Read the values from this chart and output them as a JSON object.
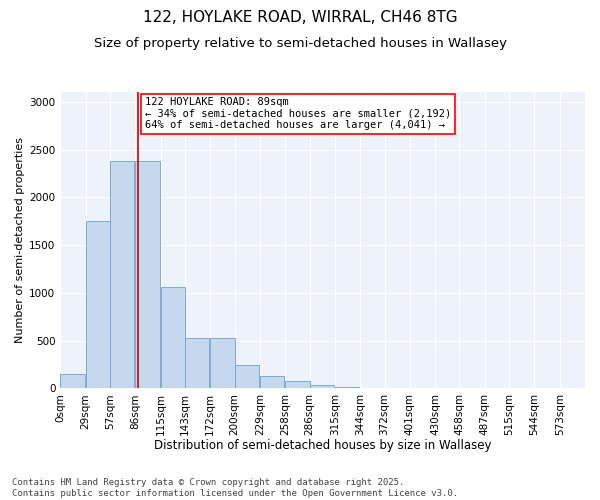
{
  "title": "122, HOYLAKE ROAD, WIRRAL, CH46 8TG",
  "subtitle": "Size of property relative to semi-detached houses in Wallasey",
  "xlabel": "Distribution of semi-detached houses by size in Wallasey",
  "ylabel": "Number of semi-detached properties",
  "bar_color": "#c5d8ee",
  "bar_edge_color": "#6fa0cc",
  "background_color": "#eef2fa",
  "annotation_text": "122 HOYLAKE ROAD: 89sqm\n← 34% of semi-detached houses are smaller (2,192)\n64% of semi-detached houses are larger (4,041) →",
  "vline_x": 89,
  "vline_color": "#cc0000",
  "categories": [
    "0sqm",
    "29sqm",
    "57sqm",
    "86sqm",
    "115sqm",
    "143sqm",
    "172sqm",
    "200sqm",
    "229sqm",
    "258sqm",
    "286sqm",
    "315sqm",
    "344sqm",
    "372sqm",
    "401sqm",
    "430sqm",
    "458sqm",
    "487sqm",
    "515sqm",
    "544sqm",
    "573sqm"
  ],
  "bin_starts": [
    0,
    29,
    57,
    86,
    115,
    143,
    172,
    200,
    229,
    258,
    286,
    315,
    344,
    372,
    401,
    430,
    458,
    487,
    515,
    544,
    573
  ],
  "bin_width": 28,
  "values": [
    155,
    1750,
    2380,
    2380,
    1060,
    530,
    530,
    240,
    130,
    80,
    30,
    10,
    0,
    0,
    0,
    0,
    0,
    0,
    0,
    0,
    0
  ],
  "ylim": [
    0,
    3100
  ],
  "yticks": [
    0,
    500,
    1000,
    1500,
    2000,
    2500,
    3000
  ],
  "footnote": "Contains HM Land Registry data © Crown copyright and database right 2025.\nContains public sector information licensed under the Open Government Licence v3.0.",
  "title_fontsize": 11,
  "subtitle_fontsize": 9.5,
  "xlabel_fontsize": 8.5,
  "ylabel_fontsize": 8,
  "tick_fontsize": 7.5,
  "annot_fontsize": 7.5,
  "footnote_fontsize": 6.5
}
